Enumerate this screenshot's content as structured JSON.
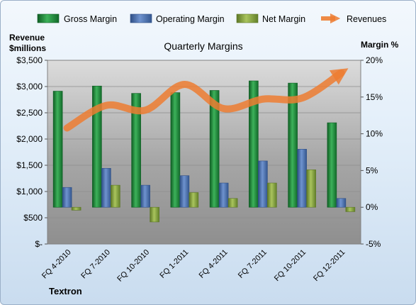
{
  "company": "Textron",
  "chart_data": {
    "type": "bar",
    "title": "Quarterly Margins",
    "left_axis_label": [
      "Revenue",
      "$millions"
    ],
    "right_axis_label": "Margin %",
    "categories": [
      "FQ 4-2010",
      "FQ 7-2010",
      "FQ 10-2010",
      "FQ 1-2011",
      "FQ 4-2011",
      "FQ 7-2011",
      "FQ 10-2011",
      "FQ 12-2011"
    ],
    "left_axis": {
      "min": 0,
      "max": 3500,
      "step": 500,
      "tick_labels": [
        "$-",
        "$500",
        "$1,000",
        "$1,500",
        "$2,000",
        "$2,500",
        "$3,000",
        "$3,500"
      ]
    },
    "right_axis": {
      "min": -5,
      "max": 20,
      "step": 5,
      "tick_labels": [
        "-5%",
        "0%",
        "5%",
        "10%",
        "15%",
        "20%"
      ]
    },
    "grid": true,
    "legend_position": "top",
    "series": [
      {
        "name": "Gross Margin",
        "axis": "right",
        "kind": "bar",
        "color": "#1f8a3c",
        "values": [
          15.8,
          16.5,
          15.5,
          15.6,
          15.9,
          17.2,
          16.9,
          11.5
        ]
      },
      {
        "name": "Operating Margin",
        "axis": "right",
        "kind": "bar",
        "color": "#4a72b0",
        "values": [
          2.7,
          5.3,
          3.0,
          4.3,
          3.3,
          6.3,
          7.9,
          1.2
        ]
      },
      {
        "name": "Net Margin",
        "axis": "right",
        "kind": "bar",
        "color": "#8aa83f",
        "values": [
          -0.4,
          3.0,
          -2.0,
          2.0,
          1.2,
          3.3,
          5.1,
          -0.6
        ]
      },
      {
        "name": "Revenues",
        "axis": "left",
        "kind": "line",
        "color": "#ed7d31",
        "values": [
          2210,
          2640,
          2550,
          3040,
          2580,
          2760,
          2780,
          3260
        ]
      }
    ]
  }
}
